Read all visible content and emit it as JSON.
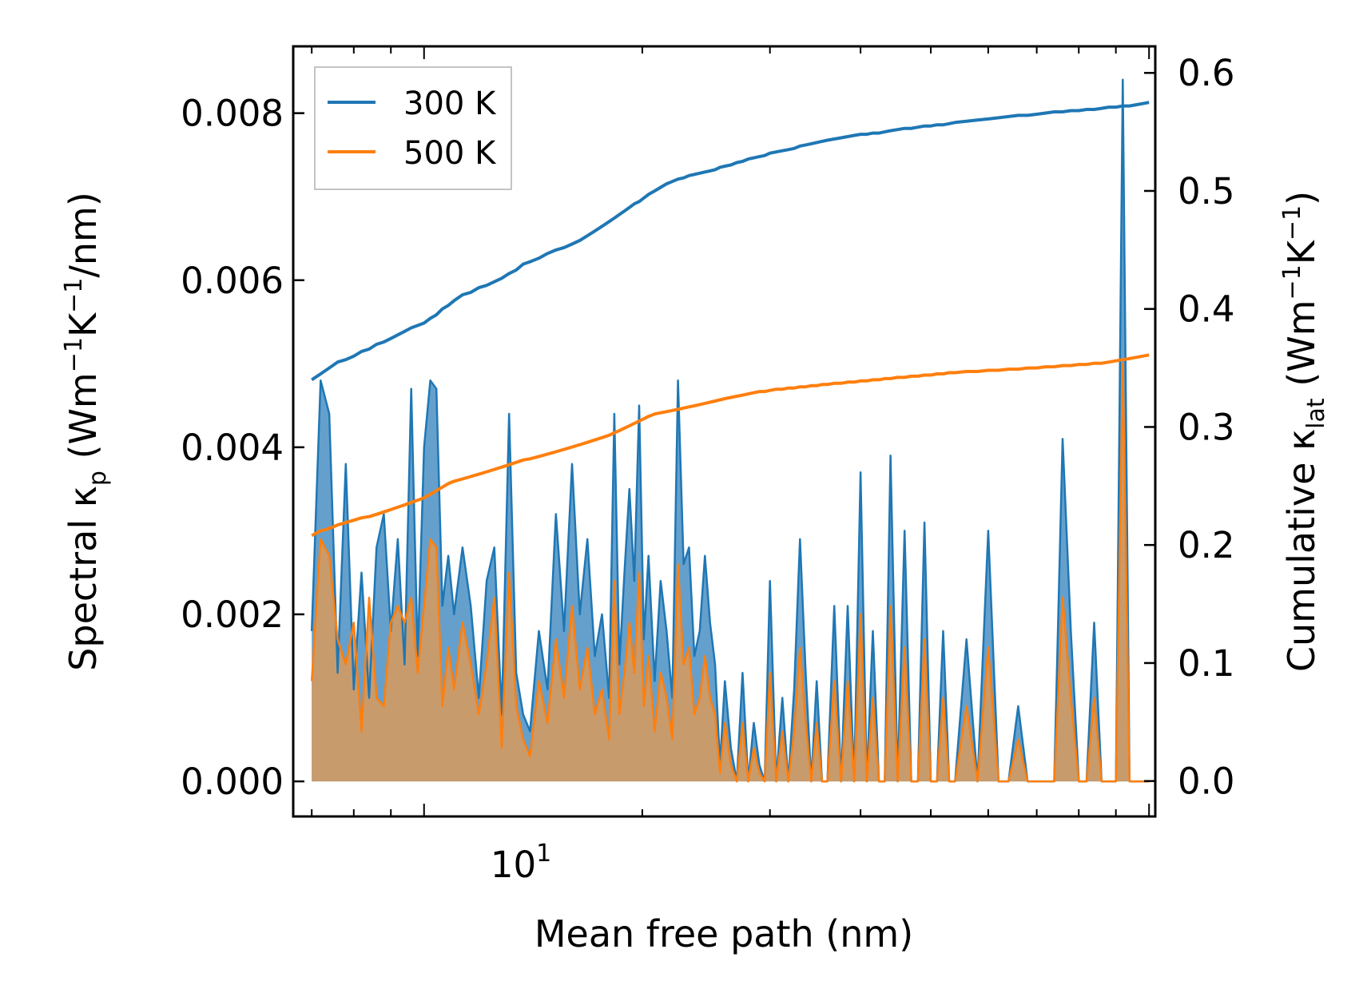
{
  "chart_data": {
    "type": "line",
    "xlabel": "Mean free path (nm)",
    "x_scale": "log",
    "xlim": [
      6.6,
      102
    ],
    "x_tick_label": {
      "base": "10",
      "exponent": "1"
    },
    "ylabel_left": {
      "prefix": "Spectral κ",
      "sub": "p",
      "units_open": " (Wm",
      "sup1": "−1",
      "mid": "K",
      "sup2": "−1",
      "units_close": "/nm)"
    },
    "ylabel_right": {
      "prefix": "Cumulative κ",
      "sub": "lat",
      "units_open": " (Wm",
      "sup1": "−1",
      "mid": "K",
      "sup2": "−1",
      "units_close": ")"
    },
    "ylim_left": [
      -0.00042,
      0.0088
    ],
    "ylim_right": [
      -0.03,
      0.6225
    ],
    "left_ticks": [
      "0.000",
      "0.002",
      "0.004",
      "0.006",
      "0.008"
    ],
    "left_tick_values": [
      0,
      0.002,
      0.004,
      0.006,
      0.008
    ],
    "right_ticks": [
      "0.0",
      "0.1",
      "0.2",
      "0.3",
      "0.4",
      "0.5",
      "0.6"
    ],
    "right_tick_values": [
      0,
      0.1,
      0.2,
      0.3,
      0.4,
      0.5,
      0.6
    ],
    "legend": {
      "position": "upper-left",
      "entries": [
        "300 K",
        "500 K"
      ]
    },
    "colors": {
      "300K": "#1f77b4",
      "500K": "#ff7f0e",
      "fill_300K": "#4a8fc4",
      "fill_500K": "#d39a62"
    },
    "x": [
      7.0,
      7.2,
      7.4,
      7.6,
      7.8,
      8.0,
      8.2,
      8.4,
      8.6,
      8.8,
      9.0,
      9.2,
      9.4,
      9.6,
      9.8,
      10.0,
      10.2,
      10.4,
      10.6,
      10.8,
      11.0,
      11.3,
      11.6,
      11.9,
      12.2,
      12.5,
      12.8,
      13.1,
      13.4,
      13.7,
      14.0,
      14.4,
      14.8,
      15.2,
      15.6,
      16.0,
      16.4,
      16.8,
      17.2,
      17.6,
      18.0,
      18.3,
      18.6,
      18.9,
      19.2,
      19.5,
      19.8,
      20.1,
      20.4,
      20.8,
      21.2,
      21.6,
      22.0,
      22.4,
      22.8,
      23.2,
      23.6,
      24.0,
      24.4,
      24.8,
      25.2,
      25.6,
      26.0,
      26.5,
      27.0,
      27.5,
      28.0,
      28.5,
      29.0,
      29.5,
      30.0,
      30.6,
      31.2,
      31.8,
      32.4,
      33.0,
      33.6,
      34.2,
      34.8,
      35.4,
      36.0,
      36.8,
      37.6,
      38.4,
      39.2,
      40.0,
      40.8,
      41.6,
      42.4,
      43.2,
      44.0,
      45.0,
      46.0,
      47.0,
      48.0,
      49.0,
      50.0,
      51.0,
      52.0,
      53.0,
      54.0,
      56.0,
      58.0,
      60.0,
      62.0,
      64.0,
      66.0,
      68.0,
      70.0,
      72.0,
      74.0,
      76.0,
      78.0,
      80.0,
      82.0,
      84.0,
      86.0,
      88.0,
      90.0,
      92.0,
      94.0,
      96.0,
      98.0,
      100.0
    ],
    "series": [
      {
        "name": "300 K",
        "spectral": [
          0.0018,
          0.0048,
          0.0044,
          0.0013,
          0.0038,
          0.0011,
          0.0025,
          0.001,
          0.0028,
          0.0032,
          0.0018,
          0.0029,
          0.0014,
          0.0047,
          0.0015,
          0.004,
          0.0048,
          0.0047,
          0.0021,
          0.0027,
          0.002,
          0.0028,
          0.0021,
          0.001,
          0.0024,
          0.0028,
          0.0008,
          0.0044,
          0.0013,
          0.0008,
          0.0006,
          0.0018,
          0.0011,
          0.0032,
          0.0018,
          0.0038,
          0.002,
          0.0029,
          0.0015,
          0.002,
          0.001,
          0.0044,
          0.0014,
          0.0025,
          0.0035,
          0.0024,
          0.0045,
          0.0017,
          0.0027,
          0.0012,
          0.0024,
          0.0018,
          0.001,
          0.0048,
          0.0026,
          0.0028,
          0.0015,
          0.0018,
          0.0027,
          0.0019,
          0.0014,
          0.0002,
          0.0012,
          0.0004,
          0.0,
          0.0013,
          0.0,
          0.0007,
          0.0002,
          0.0,
          0.0024,
          0.0,
          0.001,
          0.0,
          0.0011,
          0.0029,
          0.0013,
          0.0,
          0.0012,
          0.0,
          0.0,
          0.0021,
          0.0,
          0.0021,
          0.0,
          0.0037,
          0.0,
          0.0018,
          0.0,
          0.0,
          0.0039,
          0.0,
          0.003,
          0.0,
          0.0,
          0.0031,
          0.0,
          0.0,
          0.0018,
          0.0,
          0.0,
          0.0017,
          0.0,
          0.003,
          0.0,
          0.0,
          0.0009,
          0.0,
          0.0,
          0.0,
          0.0,
          0.0041,
          0.0018,
          0.0,
          0.0,
          0.0019,
          0.0,
          0.0,
          0.0,
          0.0084,
          0.0,
          0.0,
          0.0,
          0.0,
          0.0
        ],
        "cumulative": [
          0.34,
          0.345,
          0.35,
          0.355,
          0.357,
          0.36,
          0.364,
          0.366,
          0.37,
          0.372,
          0.375,
          0.378,
          0.381,
          0.384,
          0.386,
          0.388,
          0.392,
          0.395,
          0.4,
          0.403,
          0.407,
          0.412,
          0.414,
          0.418,
          0.42,
          0.423,
          0.426,
          0.43,
          0.433,
          0.438,
          0.44,
          0.443,
          0.447,
          0.45,
          0.452,
          0.455,
          0.458,
          0.462,
          0.466,
          0.47,
          0.474,
          0.477,
          0.48,
          0.483,
          0.486,
          0.489,
          0.491,
          0.494,
          0.497,
          0.5,
          0.503,
          0.506,
          0.508,
          0.51,
          0.511,
          0.513,
          0.514,
          0.515,
          0.516,
          0.517,
          0.518,
          0.52,
          0.521,
          0.522,
          0.524,
          0.525,
          0.527,
          0.528,
          0.529,
          0.53,
          0.532,
          0.533,
          0.534,
          0.535,
          0.536,
          0.538,
          0.539,
          0.54,
          0.541,
          0.542,
          0.543,
          0.544,
          0.545,
          0.546,
          0.547,
          0.548,
          0.548,
          0.549,
          0.549,
          0.55,
          0.551,
          0.552,
          0.553,
          0.553,
          0.554,
          0.555,
          0.555,
          0.556,
          0.556,
          0.557,
          0.558,
          0.559,
          0.56,
          0.561,
          0.562,
          0.563,
          0.564,
          0.564,
          0.565,
          0.566,
          0.567,
          0.567,
          0.568,
          0.568,
          0.569,
          0.569,
          0.57,
          0.571,
          0.571,
          0.572,
          0.572,
          0.573,
          0.574,
          0.575,
          0.578
        ]
      },
      {
        "name": "500 K",
        "spectral": [
          0.0012,
          0.0029,
          0.0027,
          0.0017,
          0.0014,
          0.0019,
          0.0006,
          0.0022,
          0.001,
          0.0009,
          0.0019,
          0.0021,
          0.0019,
          0.0022,
          0.0013,
          0.0021,
          0.0029,
          0.0028,
          0.0009,
          0.0016,
          0.0011,
          0.0019,
          0.0014,
          0.0008,
          0.0014,
          0.0022,
          0.0004,
          0.0025,
          0.0009,
          0.0005,
          0.0003,
          0.0012,
          0.0007,
          0.0017,
          0.001,
          0.0021,
          0.0011,
          0.0016,
          0.0008,
          0.0011,
          0.0005,
          0.0024,
          0.0008,
          0.0013,
          0.0019,
          0.0013,
          0.0025,
          0.0009,
          0.0015,
          0.0006,
          0.0013,
          0.001,
          0.0005,
          0.0026,
          0.0014,
          0.0016,
          0.0008,
          0.001,
          0.0015,
          0.001,
          0.0008,
          0.0001,
          0.0007,
          0.0002,
          0.0,
          0.0007,
          0.0,
          0.0004,
          0.0001,
          0.0,
          0.0013,
          0.0,
          0.0006,
          0.0,
          0.0006,
          0.0016,
          0.0007,
          0.0,
          0.0007,
          0.0,
          0.0,
          0.0012,
          0.0,
          0.0012,
          0.0,
          0.002,
          0.0,
          0.001,
          0.0,
          0.0,
          0.0021,
          0.0,
          0.0016,
          0.0,
          0.0,
          0.0017,
          0.0,
          0.0,
          0.001,
          0.0,
          0.0,
          0.0009,
          0.0,
          0.0016,
          0.0,
          0.0,
          0.0005,
          0.0,
          0.0,
          0.0,
          0.0,
          0.0022,
          0.001,
          0.0,
          0.0,
          0.001,
          0.0,
          0.0,
          0.0,
          0.005,
          0.0,
          0.0,
          0.0,
          0.0,
          0.0
        ],
        "cumulative": [
          0.208,
          0.212,
          0.214,
          0.217,
          0.219,
          0.221,
          0.223,
          0.224,
          0.226,
          0.228,
          0.23,
          0.232,
          0.234,
          0.236,
          0.238,
          0.24,
          0.243,
          0.246,
          0.249,
          0.252,
          0.254,
          0.256,
          0.258,
          0.26,
          0.262,
          0.264,
          0.266,
          0.268,
          0.27,
          0.272,
          0.273,
          0.275,
          0.277,
          0.279,
          0.281,
          0.283,
          0.285,
          0.287,
          0.289,
          0.291,
          0.293,
          0.295,
          0.297,
          0.299,
          0.301,
          0.303,
          0.305,
          0.307,
          0.309,
          0.311,
          0.312,
          0.313,
          0.314,
          0.315,
          0.316,
          0.317,
          0.318,
          0.319,
          0.32,
          0.321,
          0.322,
          0.323,
          0.324,
          0.325,
          0.326,
          0.327,
          0.328,
          0.329,
          0.33,
          0.33,
          0.331,
          0.332,
          0.332,
          0.333,
          0.333,
          0.334,
          0.334,
          0.335,
          0.335,
          0.336,
          0.336,
          0.337,
          0.337,
          0.338,
          0.338,
          0.339,
          0.339,
          0.34,
          0.34,
          0.341,
          0.341,
          0.342,
          0.342,
          0.343,
          0.343,
          0.344,
          0.344,
          0.345,
          0.345,
          0.346,
          0.346,
          0.347,
          0.347,
          0.348,
          0.348,
          0.349,
          0.349,
          0.35,
          0.35,
          0.351,
          0.351,
          0.352,
          0.352,
          0.353,
          0.353,
          0.354,
          0.354,
          0.355,
          0.356,
          0.357,
          0.358,
          0.359,
          0.36,
          0.361,
          0.362
        ]
      }
    ]
  }
}
